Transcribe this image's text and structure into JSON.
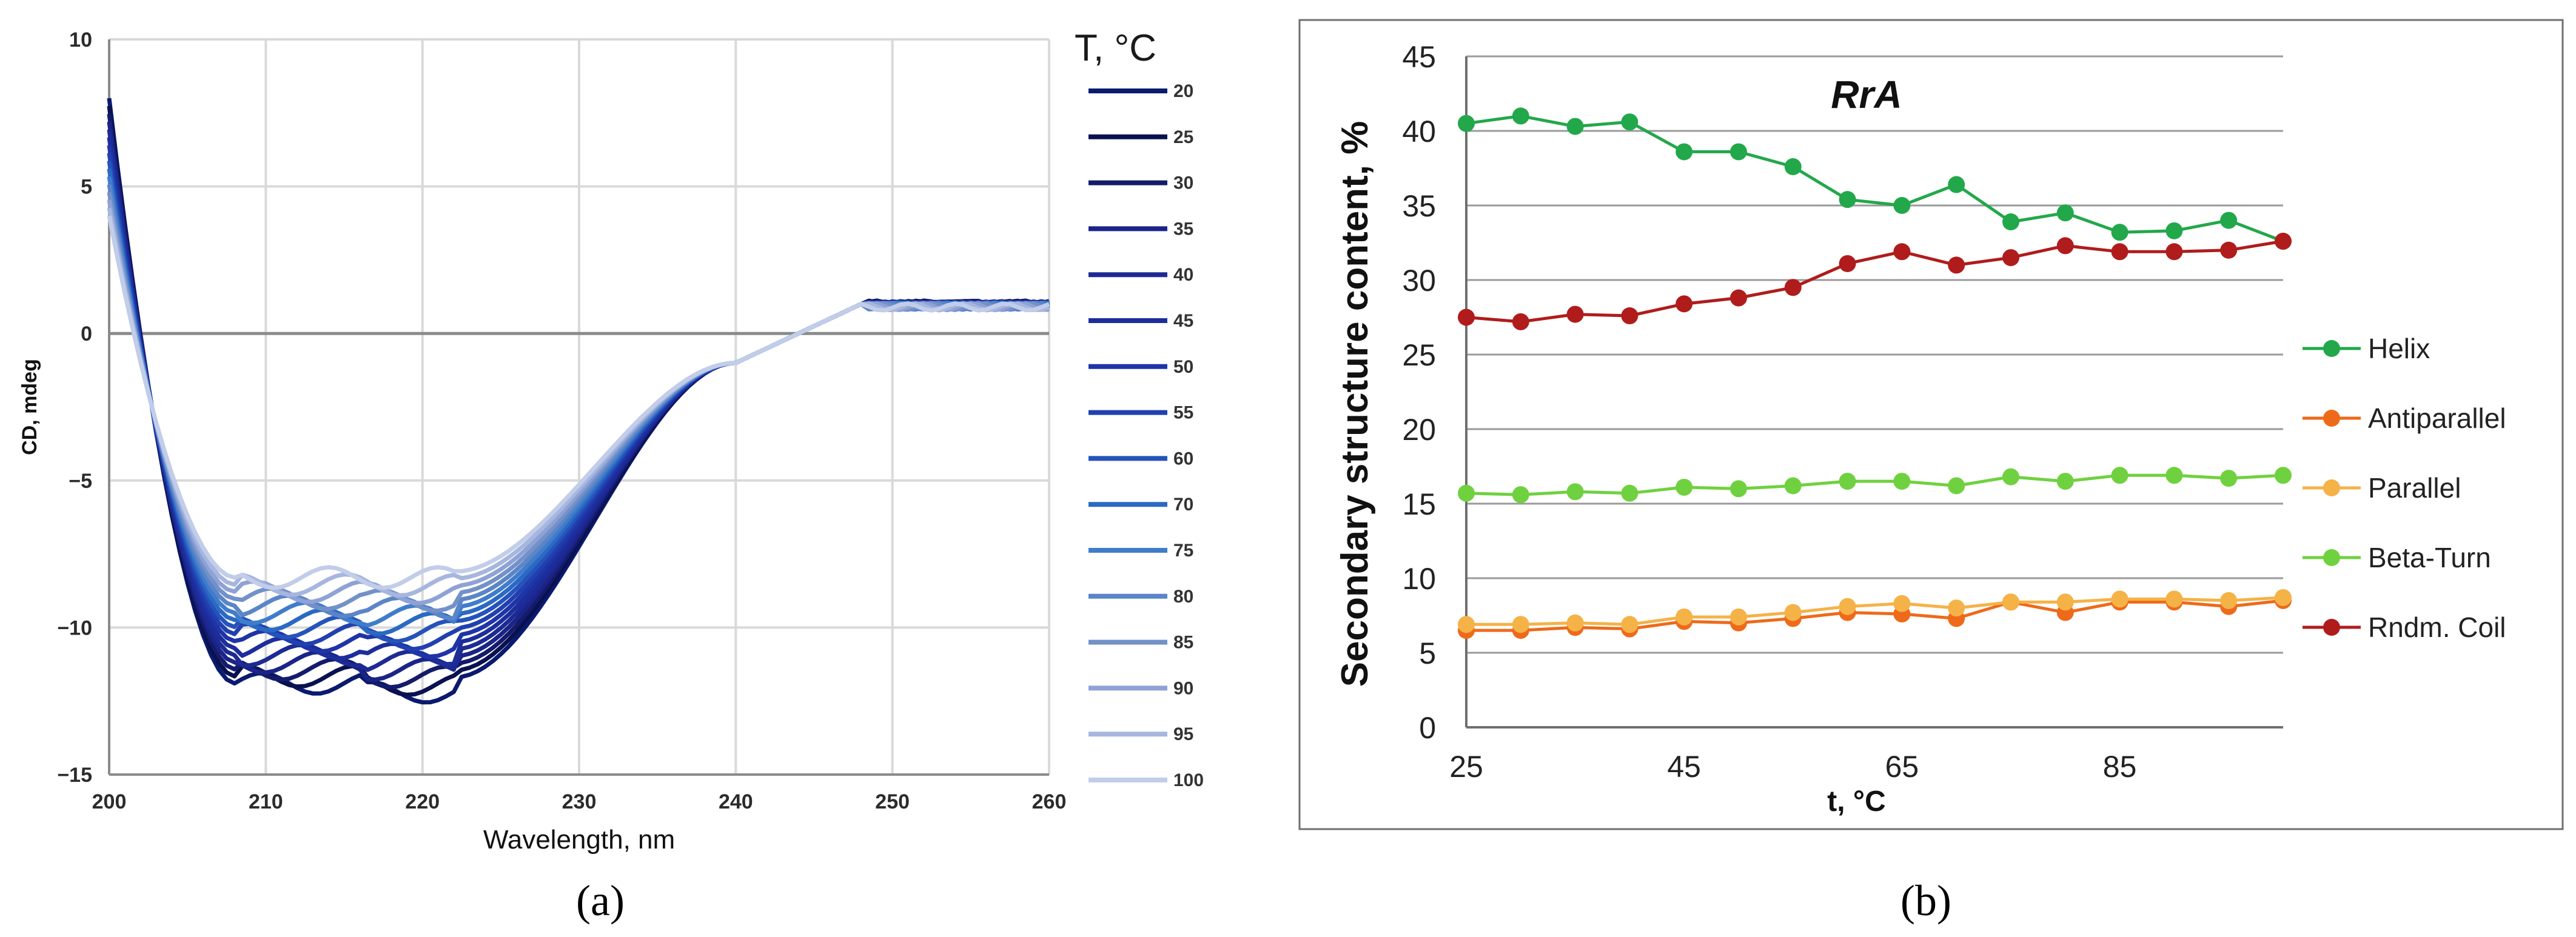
{
  "chart_data": [
    {
      "type": "line",
      "panel_label": "(a)",
      "xlabel": "Wavelength, nm",
      "ylabel": "CD, mdeg",
      "xlim": [
        200,
        260
      ],
      "ylim": [
        -15,
        10
      ],
      "xticks": [
        200,
        210,
        220,
        230,
        240,
        250,
        260
      ],
      "yticks": [
        -15,
        -10,
        -5,
        0,
        5,
        10
      ],
      "grid": true,
      "legend_title": "T, °C",
      "legend_position": "right",
      "series": [
        {
          "name": "20",
          "color": "#0a1a6e"
        },
        {
          "name": "25",
          "color": "#0a1150"
        },
        {
          "name": "30",
          "color": "#141b6a"
        },
        {
          "name": "35",
          "color": "#1a2488"
        },
        {
          "name": "40",
          "color": "#1d2a93"
        },
        {
          "name": "45",
          "color": "#1c2d9c"
        },
        {
          "name": "50",
          "color": "#1f34a6"
        },
        {
          "name": "55",
          "color": "#2140b0"
        },
        {
          "name": "60",
          "color": "#2553bb"
        },
        {
          "name": "70",
          "color": "#2a69c4"
        },
        {
          "name": "75",
          "color": "#3f7ccc"
        },
        {
          "name": "80",
          "color": "#5b85c7"
        },
        {
          "name": "85",
          "color": "#7391c9"
        },
        {
          "name": "90",
          "color": "#8fa2d5"
        },
        {
          "name": "95",
          "color": "#a6b6df"
        },
        {
          "name": "100",
          "color": "#c1cde9"
        }
      ]
    },
    {
      "type": "line",
      "panel_label": "(b)",
      "title": "RrA",
      "xlabel": "t, °C",
      "ylabel": "Secondary structure content, %",
      "xlim": [
        25,
        100
      ],
      "ylim": [
        0,
        45
      ],
      "xticks": [
        25,
        45,
        65,
        85
      ],
      "yticks": [
        0,
        5,
        10,
        15,
        20,
        25,
        30,
        35,
        40,
        45
      ],
      "grid": true,
      "legend_position": "right",
      "x": [
        25,
        30,
        35,
        40,
        45,
        50,
        55,
        60,
        65,
        70,
        75,
        80,
        85,
        90,
        95,
        100
      ],
      "series": [
        {
          "name": "Helix",
          "color": "#22a84a",
          "values": [
            40.5,
            41.0,
            40.3,
            40.6,
            38.6,
            38.6,
            37.6,
            35.4,
            35.0,
            36.4,
            33.9,
            34.5,
            33.2,
            33.3,
            34.0,
            32.6
          ]
        },
        {
          "name": "Antiparallel",
          "color": "#ee6a1a",
          "values": [
            6.5,
            6.5,
            6.7,
            6.6,
            7.1,
            7.0,
            7.3,
            7.7,
            7.6,
            7.3,
            8.4,
            7.7,
            8.4,
            8.4,
            8.1,
            8.5
          ]
        },
        {
          "name": "Parallel",
          "color": "#f5b247",
          "values": [
            6.9,
            6.9,
            7.0,
            6.9,
            7.4,
            7.4,
            7.7,
            8.1,
            8.3,
            8.0,
            8.4,
            8.4,
            8.6,
            8.6,
            8.5,
            8.7
          ]
        },
        {
          "name": "Beta-Turn",
          "color": "#6fd13f",
          "values": [
            15.7,
            15.6,
            15.8,
            15.7,
            16.1,
            16.0,
            16.2,
            16.5,
            16.5,
            16.2,
            16.8,
            16.5,
            16.9,
            16.9,
            16.7,
            16.9
          ]
        },
        {
          "name": "Rndm. Coil",
          "color": "#b01c1c",
          "values": [
            27.5,
            27.2,
            27.7,
            27.6,
            28.4,
            28.8,
            29.5,
            31.1,
            31.9,
            31.0,
            31.5,
            32.3,
            31.9,
            31.9,
            32.0,
            32.6
          ]
        }
      ]
    }
  ]
}
